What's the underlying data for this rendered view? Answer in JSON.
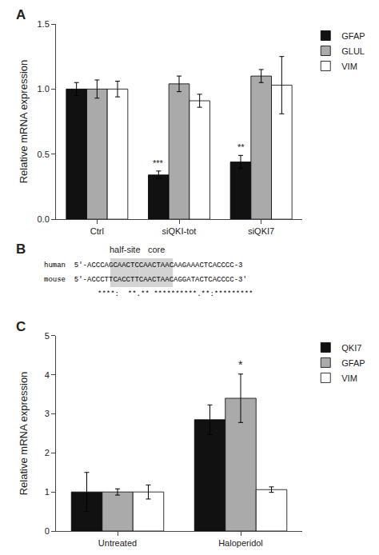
{
  "chart_data": [
    {
      "type": "bar",
      "title": "A",
      "categories": [
        "Ctrl",
        "siQKI-tot",
        "siQKI7"
      ],
      "series": [
        {
          "name": "GFAP",
          "color": "#111111",
          "values": [
            1.0,
            0.34,
            0.44
          ],
          "errors": [
            0.05,
            0.03,
            0.05
          ]
        },
        {
          "name": "GLUL",
          "color": "#aaaaaa",
          "values": [
            1.0,
            1.04,
            1.1
          ],
          "errors": [
            0.07,
            0.06,
            0.05
          ]
        },
        {
          "name": "VIM",
          "color": "#ffffff",
          "values": [
            1.0,
            0.91,
            1.03
          ],
          "errors": [
            0.06,
            0.05,
            0.22
          ]
        }
      ],
      "annotations": [
        {
          "text": "***",
          "category": "siQKI-tot",
          "series": "GFAP"
        },
        {
          "text": "**",
          "category": "siQKI7",
          "series": "GFAP"
        }
      ],
      "ylabel": "Relative mRNA expression",
      "ylim": [
        0.0,
        1.5
      ],
      "yticks": [
        {
          "value": 0.0,
          "label": "0.0"
        },
        {
          "value": 0.5,
          "label": "0.5"
        },
        {
          "value": 1.0,
          "label": "1.0"
        },
        {
          "value": 1.5,
          "label": "1.5"
        }
      ],
      "grid": false,
      "legend": "right"
    },
    {
      "type": "sequence_alignment",
      "title": "B",
      "lines": [
        "human  5′-ACCCAGCAACTCCAACTAACAAGAAACTCACCCC-3",
        "mouse  5′-ACCCTTCACCTTCAACTAACAGGATACTCACCCC-3′",
        "****:  **.** **********.**:*********"
      ],
      "annotations": [
        {
          "text": "half-site"
        },
        {
          "text": "core"
        }
      ]
    },
    {
      "type": "bar",
      "title": "C",
      "categories": [
        "Untreated",
        "Haloperidol"
      ],
      "series": [
        {
          "name": "QKI7",
          "color": "#111111",
          "values": [
            1.0,
            2.85
          ],
          "errors": [
            0.5,
            0.38
          ]
        },
        {
          "name": "GFAP",
          "color": "#aaaaaa",
          "values": [
            1.0,
            3.4
          ],
          "errors": [
            0.08,
            0.62
          ]
        },
        {
          "name": "VIM",
          "color": "#ffffff",
          "values": [
            1.0,
            1.06
          ],
          "errors": [
            0.18,
            0.07
          ]
        }
      ],
      "annotations": [
        {
          "text": "*",
          "category": "Haloperidol",
          "series": "GFAP"
        }
      ],
      "ylabel": "Relative mRNA expression",
      "ylim": [
        0.0,
        5.0
      ],
      "yticks": [
        0,
        1,
        2,
        3,
        4,
        5
      ],
      "grid": false,
      "legend": "right"
    }
  ]
}
